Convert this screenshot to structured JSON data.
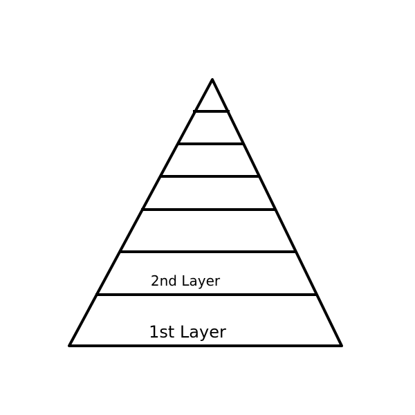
{
  "diagram": {
    "type": "pyramid",
    "layers": [
      {
        "label": "1st Layer"
      },
      {
        "label": "2nd Layer"
      },
      {
        "label": ""
      },
      {
        "label": ""
      },
      {
        "label": ""
      },
      {
        "label": ""
      },
      {
        "label": ""
      }
    ]
  }
}
